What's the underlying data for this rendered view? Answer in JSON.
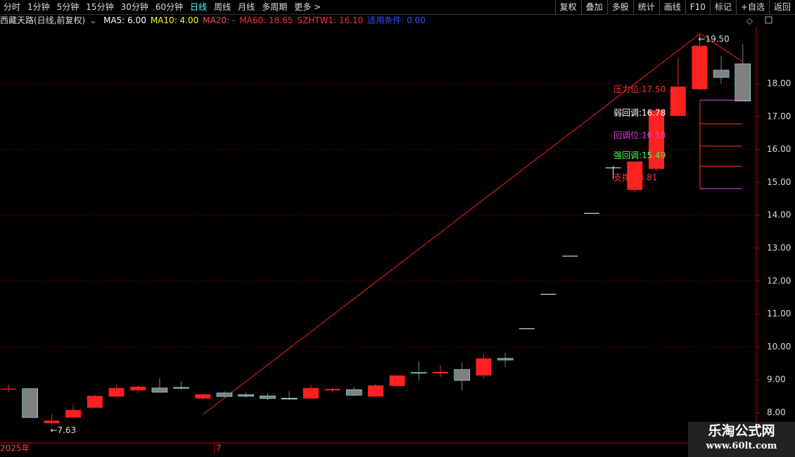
{
  "toolbar": {
    "left": [
      "分时",
      "1分钟",
      "5分钟",
      "15分钟",
      "30分钟",
      "60分钟",
      "日线",
      "周线",
      "月线",
      "多周期",
      "更多 >"
    ],
    "active": "日线",
    "right": [
      "复权",
      "叠加",
      "多股",
      "统计",
      "画线",
      "F10",
      "标记",
      "+自选",
      "返回"
    ]
  },
  "legend": {
    "title": "西藏天路(日线,前复权)",
    "items": [
      {
        "text": "MA5: 6.00",
        "color": "#ffffff"
      },
      {
        "text": "MA10: 4.00",
        "color": "#ffff00"
      },
      {
        "text": "MA20: -",
        "color": "#ff5050"
      },
      {
        "text": "MA60: 18.65",
        "color": "#ff3232"
      },
      {
        "text": "SZHTW1: 16.10",
        "color": "#ff3232"
      },
      {
        "text": "适用条件: 0.00",
        "color": "#3050ff"
      }
    ]
  },
  "chart_data": {
    "type": "candlestick",
    "open": [
      8.7,
      8.73,
      7.68,
      7.85,
      8.15,
      8.49,
      8.68,
      8.75,
      8.77,
      8.43,
      8.6,
      8.55,
      8.51,
      8.44,
      8.43,
      8.68,
      8.7,
      8.49,
      8.81,
      9.22,
      9.19,
      9.31,
      9.13,
      9.65,
      10.56,
      11.61,
      12.77,
      14.07,
      15.45,
      14.77,
      15.41,
      17.02,
      17.83,
      18.41,
      18.6
    ],
    "high": [
      8.85,
      8.73,
      7.95,
      8.25,
      8.55,
      8.85,
      8.83,
      9.05,
      8.95,
      8.56,
      8.65,
      8.62,
      8.6,
      8.65,
      8.85,
      8.75,
      8.78,
      8.88,
      9.15,
      9.55,
      9.45,
      9.52,
      9.78,
      9.82,
      10.56,
      11.61,
      12.77,
      14.07,
      15.5,
      15.65,
      17.25,
      18.8,
      19.5,
      18.85,
      19.2
    ],
    "low": [
      8.62,
      7.85,
      7.63,
      7.85,
      8.15,
      8.48,
      8.6,
      8.6,
      8.7,
      8.4,
      8.48,
      8.45,
      8.38,
      8.38,
      8.43,
      8.62,
      8.5,
      8.48,
      8.78,
      8.98,
      9.08,
      8.68,
      9.05,
      9.38,
      10.56,
      11.61,
      12.77,
      14.07,
      15.1,
      14.7,
      15.35,
      17.0,
      17.8,
      18.0,
      17.47
    ],
    "close": [
      8.73,
      7.85,
      7.76,
      8.08,
      8.51,
      8.75,
      8.79,
      8.62,
      8.74,
      8.56,
      8.49,
      8.5,
      8.43,
      8.41,
      8.75,
      8.72,
      8.53,
      8.83,
      9.13,
      9.2,
      9.24,
      8.98,
      9.65,
      9.6,
      10.56,
      11.61,
      12.77,
      14.07,
      15.45,
      15.63,
      17.19,
      17.91,
      19.15,
      18.19,
      17.47
    ],
    "up_color": "#ff2020",
    "down_color": "#808080",
    "flat_color": "#ffffff",
    "ylim": [
      7.08,
      19.73
    ],
    "yticks": [
      {
        "value": 8,
        "label": "8.00"
      },
      {
        "value": 9,
        "label": "9.00"
      },
      {
        "value": 10,
        "label": "10.00"
      },
      {
        "value": 11,
        "label": "11.00"
      },
      {
        "value": 12,
        "label": "12.00"
      },
      {
        "value": 13,
        "label": "13.00"
      },
      {
        "value": 14,
        "label": "14.00"
      },
      {
        "value": 15,
        "label": "15.00"
      },
      {
        "value": 16,
        "label": "16.00"
      },
      {
        "value": 17,
        "label": "17.00"
      },
      {
        "value": 18,
        "label": "18.00"
      }
    ],
    "grid_ticks": [
      10,
      12,
      14,
      16,
      18
    ],
    "annotations": [
      {
        "text": "←7.63",
        "index": 2,
        "value": 7.63
      },
      {
        "text": "←19.50",
        "index": 32,
        "value": 19.5
      }
    ],
    "levels": [
      {
        "text": "压力位:17.50",
        "value": 17.5,
        "color": "#ff3232",
        "line_color": "#e040e0"
      },
      {
        "text": "弱回调:16.78",
        "value": 16.78,
        "color": "#ffffff",
        "line_color": "#ff3232"
      },
      {
        "text": "回调位:16.10",
        "value": 16.1,
        "color": "#e040e0",
        "line_color": "#ff3232"
      },
      {
        "text": "强回调:15.49",
        "value": 15.49,
        "color": "#40ff40",
        "line_color": "#ff3232"
      },
      {
        "text": "支撑:14.81",
        "value": 14.81,
        "color": "#ff3232",
        "line_color": "#e040e0"
      }
    ],
    "x_labels": [
      {
        "text": "2025年",
        "index": 0
      },
      {
        "text": "7",
        "index": 10
      }
    ]
  },
  "watermark": {
    "name": "乐淘公式网",
    "url": "www.60lt.com"
  }
}
